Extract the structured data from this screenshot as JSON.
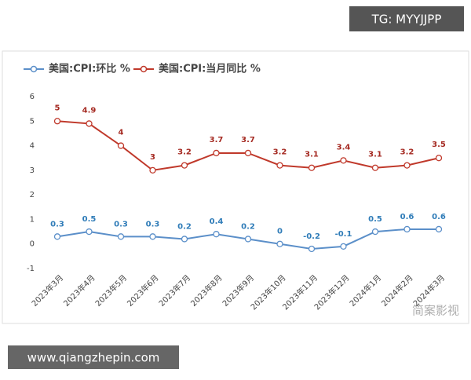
{
  "chart_data": {
    "type": "line",
    "legend_position": "top-left",
    "categories": [
      "2023年3月",
      "2023年4月",
      "2023年5月",
      "2023年6月",
      "2023年7月",
      "2023年8月",
      "2023年9月",
      "2023年10月",
      "2023年11月",
      "2023年12月",
      "2024年1月",
      "2024年2月",
      "2024年3月"
    ],
    "series": [
      {
        "name": "美国:CPI:环比 %",
        "color": "#5b8fc9",
        "label_color": "#2f7cb8",
        "values": [
          0.3,
          0.5,
          0.3,
          0.3,
          0.2,
          0.4,
          0.2,
          0,
          -0.2,
          -0.1,
          0.5,
          0.6,
          0.6
        ]
      },
      {
        "name": "美国:CPI:当月同比 %",
        "color": "#c0392b",
        "label_color": "#a52a22",
        "values": [
          5,
          4.9,
          4,
          3,
          3.2,
          3.7,
          3.7,
          3.2,
          3.1,
          3.4,
          3.1,
          3.2,
          3.5
        ]
      }
    ],
    "ylim": [
      -1,
      6
    ],
    "yticks": [
      -1,
      0,
      1,
      2,
      3,
      4,
      5,
      6
    ],
    "grid": false
  },
  "overlay": {
    "top_badge": "TG: MYYJJPP",
    "bottom_badge": "www.qiangzhepin.com",
    "watermark": "简案影视"
  }
}
